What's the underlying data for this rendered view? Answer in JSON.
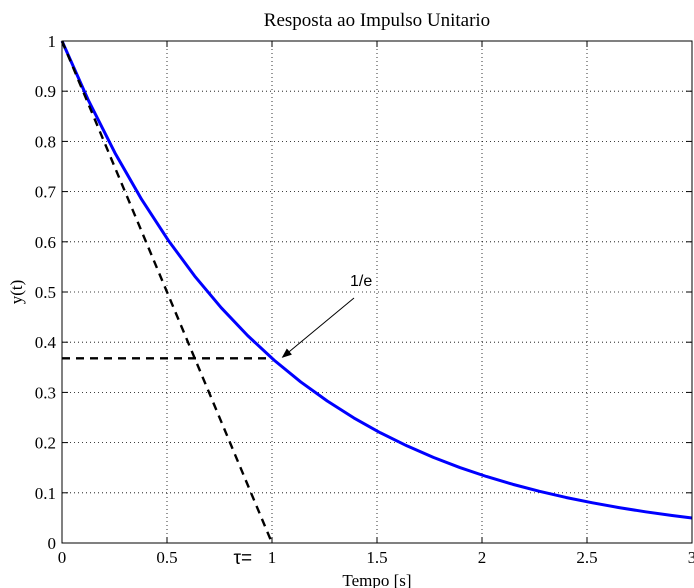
{
  "chart_data": {
    "type": "line",
    "title": "Resposta ao Impulso Unitario",
    "xlabel": "Tempo [s]",
    "ylabel": "y(t)",
    "xlim": [
      0,
      3
    ],
    "ylim": [
      0,
      1
    ],
    "grid": true,
    "x_ticks": [
      0,
      0.5,
      1,
      1.5,
      2,
      2.5,
      3
    ],
    "x_tick_labels": [
      "0",
      "0.5",
      "1",
      "1.5",
      "2",
      "2.5",
      "3"
    ],
    "y_ticks": [
      0,
      0.1,
      0.2,
      0.3,
      0.4,
      0.5,
      0.6,
      0.7,
      0.8,
      0.9,
      1
    ],
    "y_tick_labels": [
      "0",
      "0.1",
      "0.2",
      "0.3",
      "0.4",
      "0.5",
      "0.6",
      "0.7",
      "0.8",
      "0.9",
      "1"
    ],
    "series": [
      {
        "color": "#0000ff",
        "style": "solid",
        "x": [
          0,
          0.1263,
          0.2526,
          0.3789,
          0.5053,
          0.6316,
          0.7579,
          0.8842,
          1.0105,
          1.1368,
          1.2632,
          1.3895,
          1.5158,
          1.6421,
          1.7684,
          1.8947,
          2.0211,
          2.1474,
          2.2737,
          2.4,
          2.5263,
          2.6526,
          2.7789,
          2.9053,
          3.0
        ],
        "y": [
          1.0,
          0.8813,
          0.7767,
          0.6846,
          0.6034,
          0.5318,
          0.4687,
          0.4131,
          0.364,
          0.3208,
          0.2828,
          0.2492,
          0.2196,
          0.1936,
          0.1706,
          0.1503,
          0.1325,
          0.1168,
          0.1029,
          0.0907,
          0.08,
          0.0705,
          0.0621,
          0.0547,
          0.0498
        ]
      },
      {
        "color": "#000000",
        "style": "dashed",
        "x": [
          0,
          1
        ],
        "y": [
          1,
          0
        ]
      },
      {
        "color": "#000000",
        "style": "dashed",
        "x": [
          0,
          1
        ],
        "y": [
          0.3679,
          0.3679
        ]
      }
    ],
    "annotations": [
      {
        "text": "1/e",
        "x": 1.4,
        "y": 0.5,
        "arrow_to": [
          1.05,
          0.37
        ]
      },
      {
        "text": "τ=",
        "x": 0.88,
        "y": 0
      }
    ]
  }
}
